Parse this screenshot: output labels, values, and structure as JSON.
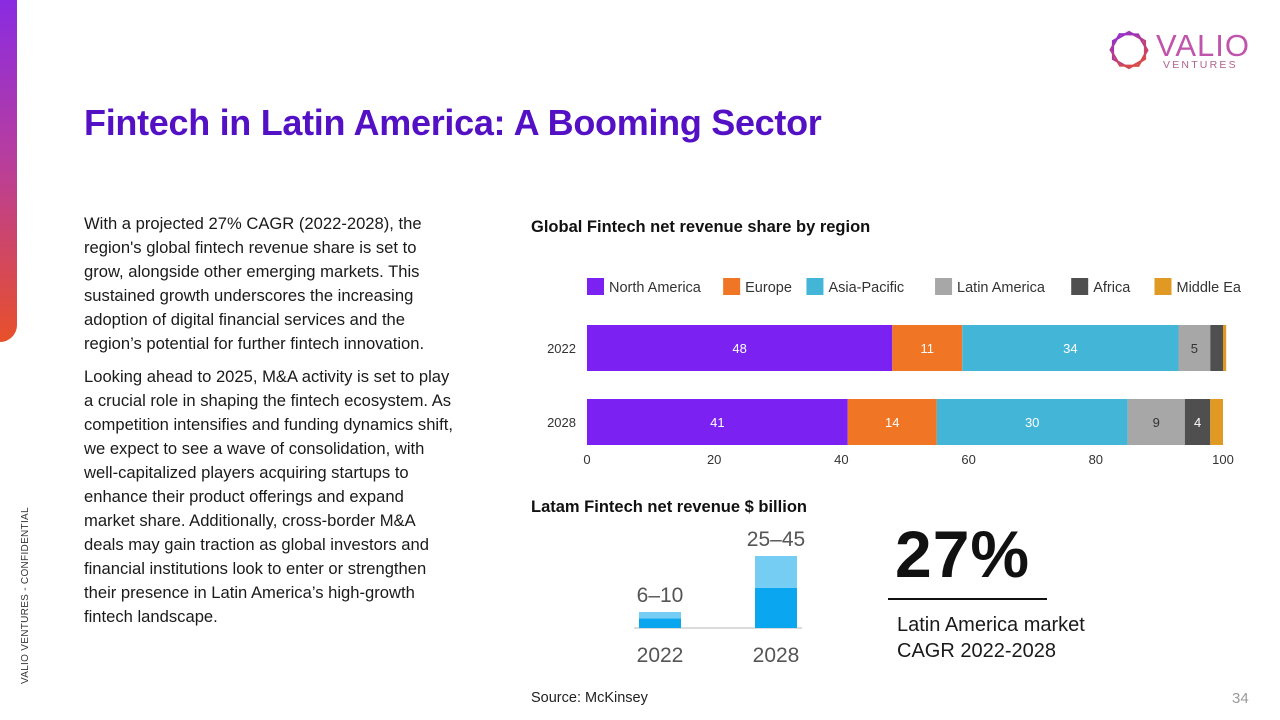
{
  "side_label": "VALIO VENTURES - CONFIDENTIAL",
  "logo": {
    "word": "VALIO",
    "sub": "VENTURES",
    "icon": "hexagon-logo-icon",
    "colors": [
      "#8a2be2",
      "#e8502a"
    ]
  },
  "title": "Fintech in Latin America: A Booming Sector",
  "paragraphs": [
    "With a projected 27% CAGR (2022-2028), the region's global fintech revenue share is set to grow, alongside other emerging markets. This sustained growth underscores the increasing adoption of digital financial services and the region’s potential for further fintech innovation.",
    "Looking ahead to 2025, M&A activity is set to play a crucial role in shaping the fintech ecosystem. As competition intensifies and funding dynamics shift, we expect to see a wave of consolidation, with well-capitalized players acquiring startups to enhance their product offerings and expand market share. Additionally, cross-border M&A deals may gain traction as global investors and financial institutions look to enter or strengthen their presence in Latin America’s high-growth fintech landscape."
  ],
  "chart_data": [
    {
      "type": "bar",
      "orientation": "horizontal",
      "stacked": true,
      "title": "Global Fintech net revenue share by region",
      "categories": [
        "2022",
        "2028"
      ],
      "series": [
        {
          "name": "North America",
          "color": "#7b22f3",
          "values": [
            48,
            41
          ]
        },
        {
          "name": "Europe",
          "color": "#f07525",
          "values": [
            11,
            14
          ]
        },
        {
          "name": "Asia-Pacific",
          "color": "#43b6d8",
          "values": [
            34,
            30
          ]
        },
        {
          "name": "Latin America",
          "color": "#a7a7a7",
          "values": [
            5,
            9
          ]
        },
        {
          "name": "Africa",
          "color": "#4f4f4f",
          "values": [
            2,
            4
          ]
        },
        {
          "name": "Middle East",
          "color": "#e09a24",
          "values": [
            0.5,
            2
          ]
        }
      ],
      "value_labels": [
        [
          "48",
          "11",
          "34",
          "5",
          "",
          ""
        ],
        [
          "41",
          "14",
          "30",
          "9",
          "4",
          ""
        ]
      ],
      "xlim": [
        0,
        100
      ],
      "xticks": [
        "0",
        "20",
        "40",
        "60",
        "80",
        "100"
      ],
      "legend": "top",
      "grid": false
    },
    {
      "type": "bar",
      "title": "Latam Fintech net revenue $ billion",
      "categories": [
        "2022",
        "2028"
      ],
      "ranges": [
        [
          6,
          10
        ],
        [
          25,
          45
        ]
      ],
      "labels": [
        "6–10",
        "25–45"
      ],
      "colors": {
        "low": "#0aa7f0",
        "high": "#76cdf4"
      }
    }
  ],
  "stat": {
    "value": "27%",
    "caption": "Latin America market CAGR 2022-2028"
  },
  "source": "Source: McKinsey",
  "page_number": "34"
}
